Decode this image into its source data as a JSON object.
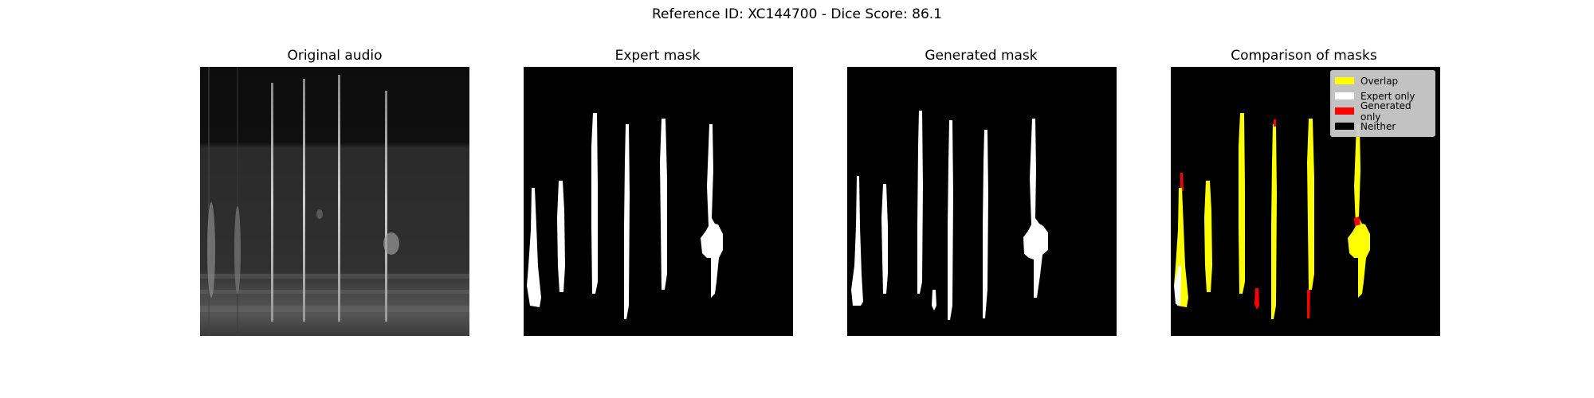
{
  "figure": {
    "suptitle": "Reference ID: XC144700 - Dice Score: 86.1"
  },
  "panels": [
    {
      "title": "Original audio"
    },
    {
      "title": "Expert mask"
    },
    {
      "title": "Generated mask"
    },
    {
      "title": "Comparison of masks"
    }
  ],
  "legend": {
    "items": [
      {
        "label": "Overlap",
        "color": "#ffff00"
      },
      {
        "label": "Expert only",
        "color": "#ffffff"
      },
      {
        "label": "Generated only",
        "color": "#ff0000"
      },
      {
        "label": "Neither",
        "color": "#000000"
      }
    ]
  },
  "colors": {
    "background": "#000000",
    "expert": "#ffffff",
    "overlap": "#ffff00",
    "generated_only": "#ff0000"
  }
}
